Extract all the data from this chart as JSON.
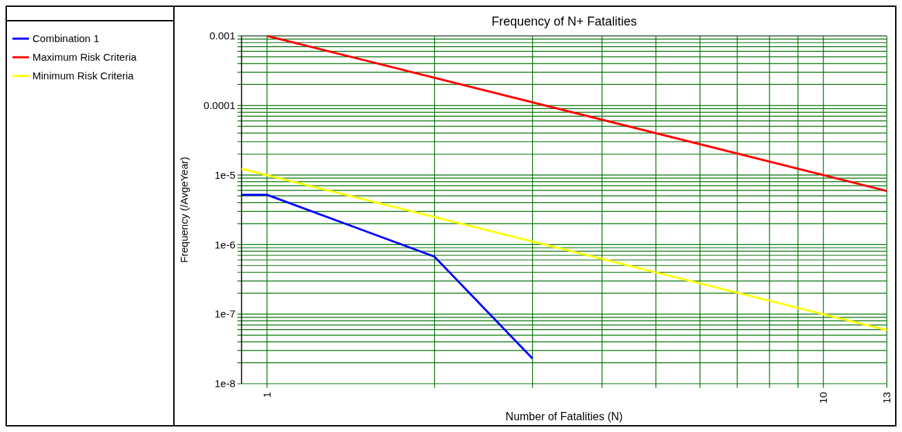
{
  "chart_data": {
    "type": "line",
    "title": "Frequency of N+ Fatalities",
    "xlabel": "Number of Fatalities (N)",
    "ylabel": "Frequency  (/AvgeYear)",
    "log": "xy",
    "grid": true,
    "legend": "left",
    "marker": "none",
    "line_style": "solid",
    "xlim": [
      0.9,
      13
    ],
    "ylim": [
      1e-08,
      0.001
    ],
    "xticks": [
      {
        "value": 1,
        "label": "1"
      },
      {
        "value": 2,
        "label": null
      },
      {
        "value": 3,
        "label": null
      },
      {
        "value": 4,
        "label": null
      },
      {
        "value": 5,
        "label": null
      },
      {
        "value": 6,
        "label": null
      },
      {
        "value": 7,
        "label": null
      },
      {
        "value": 8,
        "label": null
      },
      {
        "value": 9,
        "label": null
      },
      {
        "value": 10,
        "label": "10"
      },
      {
        "value": 13,
        "label": "13"
      }
    ],
    "yticks": [
      {
        "value": 1e-08,
        "label": "1e-8"
      },
      {
        "value": 2e-08,
        "label": null
      },
      {
        "value": 3e-08,
        "label": null
      },
      {
        "value": 4e-08,
        "label": null
      },
      {
        "value": 5e-08,
        "label": null
      },
      {
        "value": 6e-08,
        "label": null
      },
      {
        "value": 7e-08,
        "label": null
      },
      {
        "value": 8e-08,
        "label": null
      },
      {
        "value": 9e-08,
        "label": null
      },
      {
        "value": 1e-07,
        "label": "1e-7"
      },
      {
        "value": 2e-07,
        "label": null
      },
      {
        "value": 3e-07,
        "label": null
      },
      {
        "value": 4e-07,
        "label": null
      },
      {
        "value": 5e-07,
        "label": null
      },
      {
        "value": 6e-07,
        "label": null
      },
      {
        "value": 7e-07,
        "label": null
      },
      {
        "value": 8e-07,
        "label": null
      },
      {
        "value": 9e-07,
        "label": null
      },
      {
        "value": 1e-06,
        "label": "1e-6"
      },
      {
        "value": 2e-06,
        "label": null
      },
      {
        "value": 3e-06,
        "label": null
      },
      {
        "value": 4e-06,
        "label": null
      },
      {
        "value": 5e-06,
        "label": null
      },
      {
        "value": 6e-06,
        "label": null
      },
      {
        "value": 7e-06,
        "label": null
      },
      {
        "value": 8e-06,
        "label": null
      },
      {
        "value": 9e-06,
        "label": null
      },
      {
        "value": 1e-05,
        "label": "1e-5"
      },
      {
        "value": 2e-05,
        "label": null
      },
      {
        "value": 3e-05,
        "label": null
      },
      {
        "value": 4e-05,
        "label": null
      },
      {
        "value": 5e-05,
        "label": null
      },
      {
        "value": 6e-05,
        "label": null
      },
      {
        "value": 7e-05,
        "label": null
      },
      {
        "value": 8e-05,
        "label": null
      },
      {
        "value": 9e-05,
        "label": null
      },
      {
        "value": 0.0001,
        "label": "0.0001"
      },
      {
        "value": 0.0002,
        "label": null
      },
      {
        "value": 0.0003,
        "label": null
      },
      {
        "value": 0.0004,
        "label": null
      },
      {
        "value": 0.0005,
        "label": null
      },
      {
        "value": 0.0006,
        "label": null
      },
      {
        "value": 0.0007,
        "label": null
      },
      {
        "value": 0.0008,
        "label": null
      },
      {
        "value": 0.0009,
        "label": null
      },
      {
        "value": 0.001,
        "label": "0.001"
      }
    ],
    "series": [
      {
        "name": "Combination 1",
        "color": "#0000ff",
        "x": [
          0.9,
          1,
          2,
          3
        ],
        "values": [
          5.2e-06,
          5.2e-06,
          6.7e-07,
          2.3e-08
        ]
      },
      {
        "name": "Maximum Risk Criteria",
        "color": "#ff0000",
        "x": [
          1,
          13
        ],
        "values": [
          0.001,
          5.9e-06
        ]
      },
      {
        "name": "Minimum Risk Criteria",
        "color": "#ffff00",
        "x": [
          0.9,
          13
        ],
        "values": [
          1.23e-05,
          5.9e-08
        ]
      }
    ]
  }
}
